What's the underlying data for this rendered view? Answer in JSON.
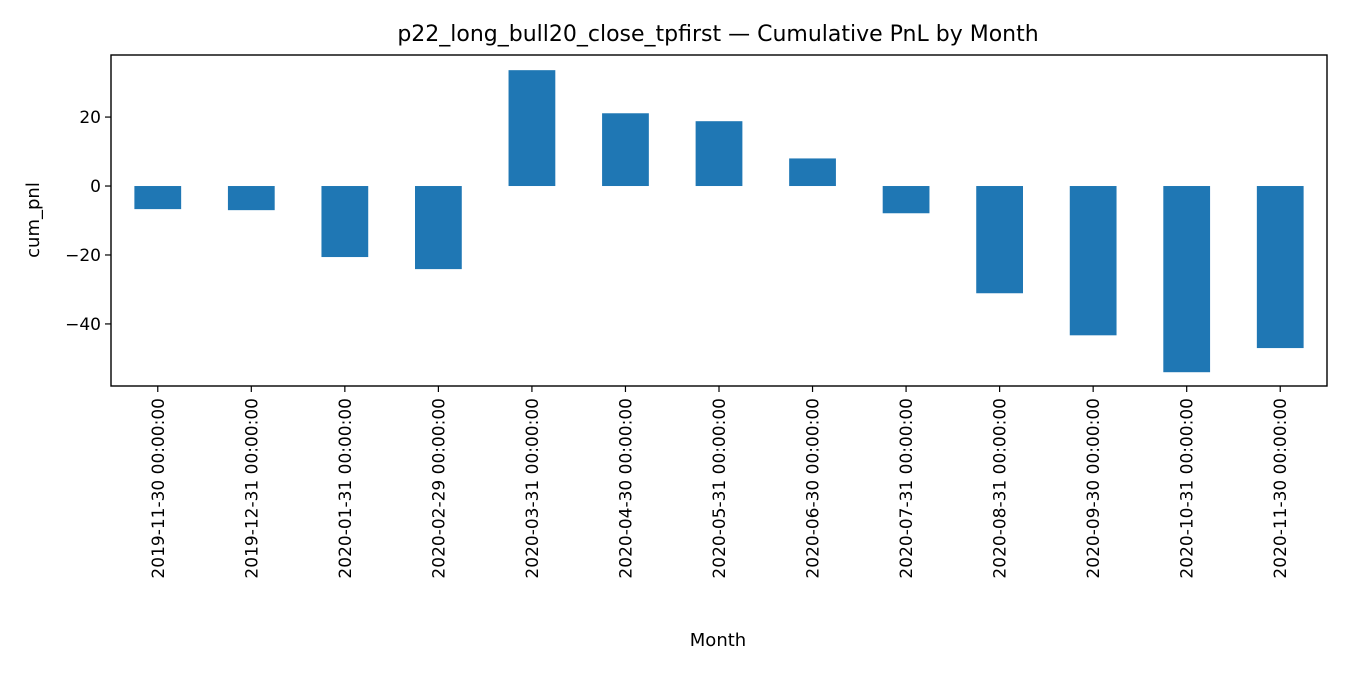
{
  "chart_data": {
    "type": "bar",
    "title": "p22_long_bull20_close_tpfirst — Cumulative PnL by Month",
    "xlabel": "Month",
    "ylabel": "cum_pnl",
    "categories": [
      "2019-11-30 00:00:00",
      "2019-12-31 00:00:00",
      "2020-01-31 00:00:00",
      "2020-02-29 00:00:00",
      "2020-03-31 00:00:00",
      "2020-04-30 00:00:00",
      "2020-05-31 00:00:00",
      "2020-06-30 00:00:00",
      "2020-07-31 00:00:00",
      "2020-08-31 00:00:00",
      "2020-09-30 00:00:00",
      "2020-10-31 00:00:00",
      "2020-11-30 00:00:00"
    ],
    "values": [
      -6.7,
      -7.0,
      -20.6,
      -24.1,
      33.6,
      21.1,
      18.8,
      8.0,
      -7.9,
      -31.1,
      -43.3,
      -54.0,
      -47.0
    ],
    "ylim": [
      -58,
      38
    ],
    "yticks": [
      -40,
      -20,
      0,
      20
    ],
    "ytick_labels": [
      "−40",
      "−20",
      "0",
      "20"
    ],
    "bar_color": "#1f77b4",
    "grid": false,
    "legend": "none"
  }
}
